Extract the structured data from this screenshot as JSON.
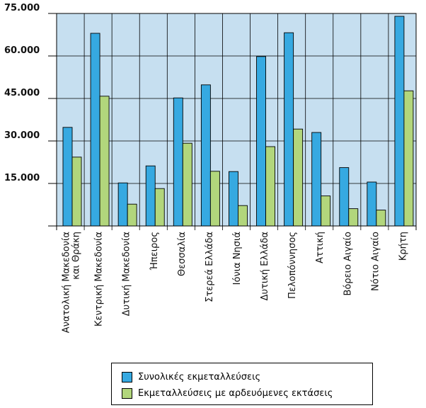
{
  "chart_data": {
    "type": "bar",
    "categories": [
      "Ανατολική Μακεδονία και Θράκη",
      "Κεντρική Μακεδονία",
      "Δυτική Μακεδονία",
      "Ήπειρος",
      "Θεσσαλία",
      "Στερεά Ελλάδα",
      "Ιόνια Νησιά",
      "Δυτική Ελλάδα",
      "Πελοπόννησος",
      "Αττική",
      "Βόρειο Αιγαίο",
      "Νότιο Αιγαίο",
      "Κρήτη"
    ],
    "category_lines": [
      [
        "Ανατολική Μακεδονία",
        "και Θράκη"
      ],
      [
        "Κεντρική Μακεδονία"
      ],
      [
        "Δυτική Μακεδονία"
      ],
      [
        "Ήπειρος"
      ],
      [
        "Θεσσαλία"
      ],
      [
        "Στερεά Ελλάδα"
      ],
      [
        "Ιόνια Νησιά"
      ],
      [
        "Δυτική Ελλάδα"
      ],
      [
        "Πελοπόννησος"
      ],
      [
        "Αττική"
      ],
      [
        "Βόρειο Αιγαίο"
      ],
      [
        "Νότιο Αιγαίο"
      ],
      [
        "Κρήτη"
      ]
    ],
    "series": [
      {
        "name": "Συνολικές εκμεταλλεύσεις",
        "color": "#36a9e1",
        "values": [
          34800,
          68000,
          15200,
          21200,
          45200,
          49800,
          19200,
          59800,
          68200,
          33000,
          20600,
          15500,
          74000
        ]
      },
      {
        "name": "Εκμεταλλεύσεις με αρδευόμενες εκτάσεις",
        "color": "#b2d67c",
        "values": [
          24300,
          45800,
          7700,
          13200,
          29200,
          19300,
          7200,
          28000,
          34200,
          10600,
          6100,
          5600,
          47700
        ]
      }
    ],
    "yticks": [
      15000,
      30000,
      45000,
      60000,
      75000
    ],
    "ytick_labels": [
      "15.000",
      "30.000",
      "45.000",
      "60.000",
      "75.000"
    ],
    "ylim": [
      0,
      75000
    ],
    "xlabel": "",
    "ylabel": "",
    "grid": "horizontal",
    "legend_position": "bottom",
    "plot_background": "#c6dff0"
  }
}
